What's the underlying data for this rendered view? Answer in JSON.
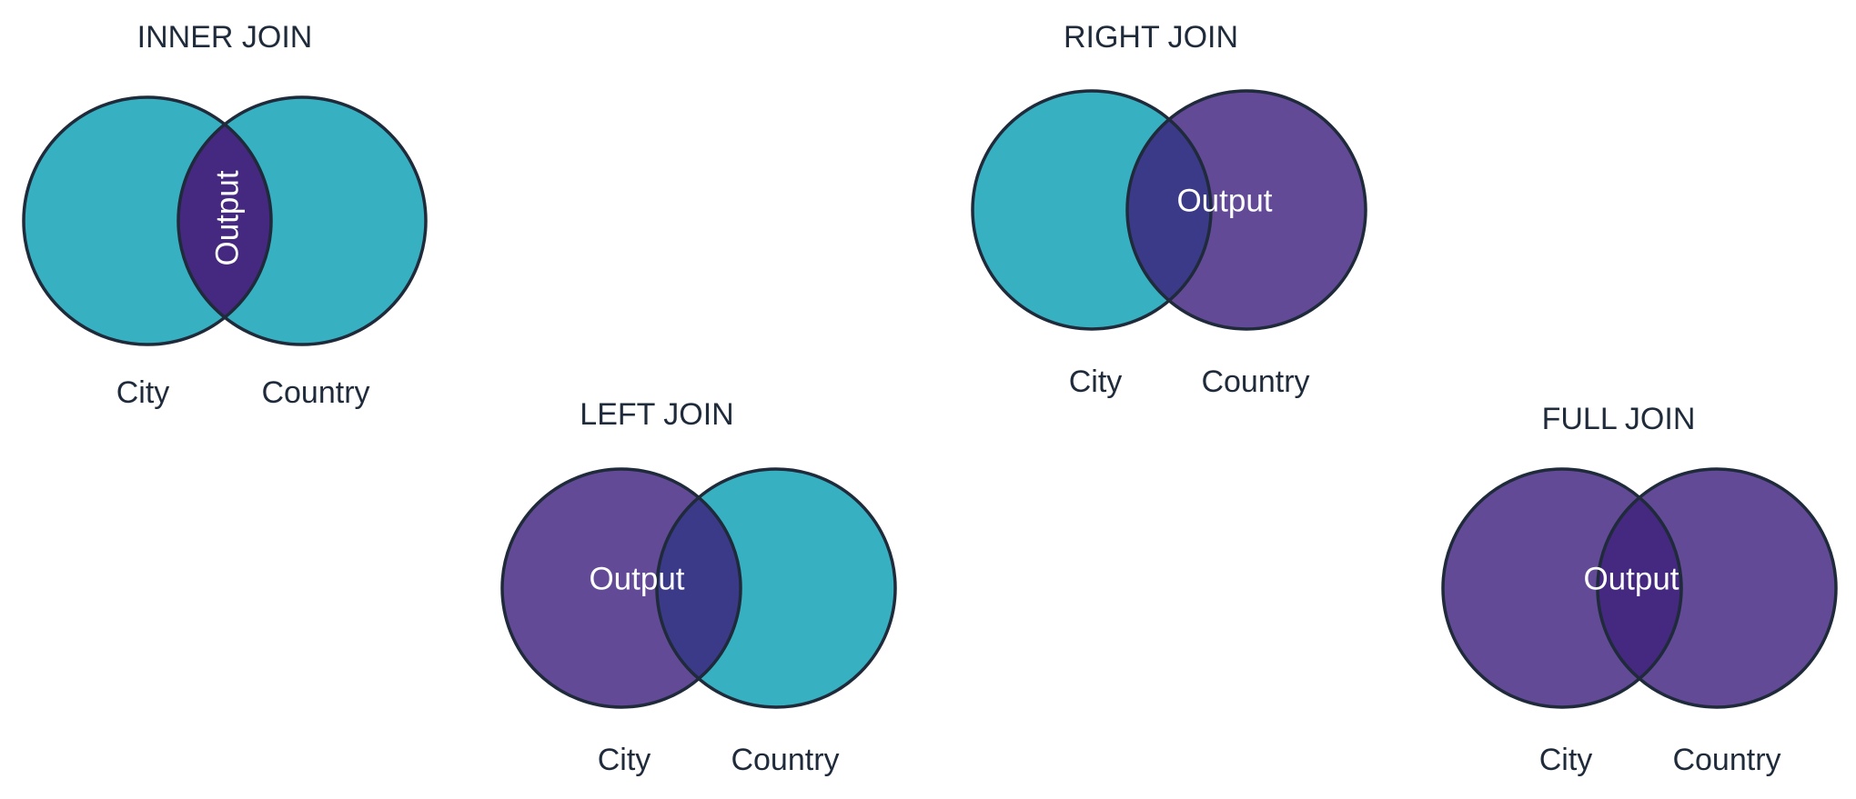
{
  "colors": {
    "teal": "#37b0c1",
    "purple": "#624a97",
    "overlap_blue": "#3a3a88",
    "overlap_deep": "#45287f",
    "outline": "#1f2a3a"
  },
  "diagrams": {
    "inner": {
      "title": "INNER JOIN",
      "left_label": "City",
      "right_label": "Country",
      "output": "Output"
    },
    "left": {
      "title": "LEFT JOIN",
      "left_label": "City",
      "right_label": "Country",
      "output": "Output"
    },
    "right": {
      "title": "RIGHT JOIN",
      "left_label": "City",
      "right_label": "Country",
      "output": "Output"
    },
    "full": {
      "title": "FULL JOIN",
      "left_label": "City",
      "right_label": "Country",
      "output": "Output"
    }
  }
}
